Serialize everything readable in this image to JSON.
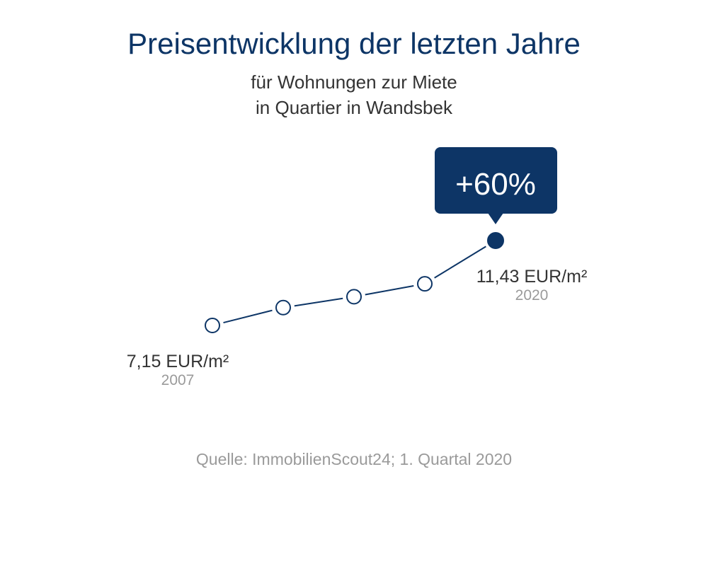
{
  "title": "Preisentwicklung der letzten Jahre",
  "subtitle_line1": "für Wohnungen zur Miete",
  "subtitle_line2": "in Quartier in Wandsbek",
  "source": "Quelle: ImmobilienScout24; 1. Quartal 2020",
  "colors": {
    "primary": "#0d3566",
    "muted": "#9a9a9a",
    "text": "#333333"
  },
  "chart_data": {
    "type": "line",
    "points": [
      {
        "value": 7.15
      },
      {
        "value": 8.05
      },
      {
        "value": 8.6
      },
      {
        "value": 9.25
      },
      {
        "value": 11.43
      }
    ],
    "start_label": {
      "value": "7,15 EUR/m²",
      "year": "2007"
    },
    "end_label": {
      "value": "11,43 EUR/m²",
      "year": "2020"
    },
    "change_badge": "+60%"
  }
}
